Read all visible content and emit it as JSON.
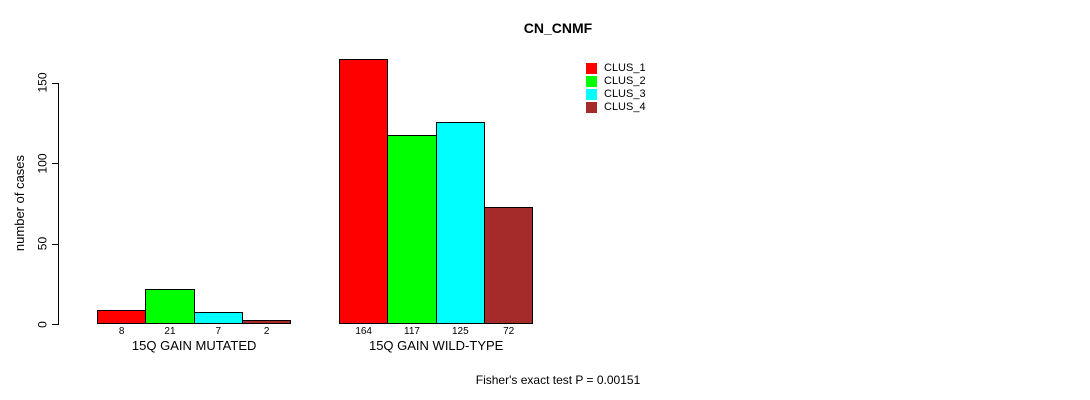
{
  "title": "CN_CNMF",
  "y_axis": {
    "label": "number of cases",
    "ticks": [
      0,
      50,
      100,
      150
    ]
  },
  "footer": "Fisher's exact test P = 0.00151",
  "chart_data": {
    "type": "bar",
    "title": "CN_CNMF",
    "xlabel": "",
    "ylabel": "number of cases",
    "ylim": [
      0,
      164
    ],
    "grid": false,
    "legend_position": "inside-top-right",
    "bar_value_labels": true,
    "categories": [
      "15Q GAIN MUTATED",
      "15Q GAIN WILD-TYPE"
    ],
    "series": [
      {
        "name": "CLUS_1",
        "color": "#ff0000",
        "values": [
          8,
          164
        ]
      },
      {
        "name": "CLUS_2",
        "color": "#00ff00",
        "values": [
          21,
          117
        ]
      },
      {
        "name": "CLUS_3",
        "color": "#00ffff",
        "values": [
          7,
          125
        ]
      },
      {
        "name": "CLUS_4",
        "color": "#a52a2a",
        "values": [
          2,
          72
        ]
      }
    ],
    "annotation": "Fisher's exact test P = 0.00151"
  }
}
